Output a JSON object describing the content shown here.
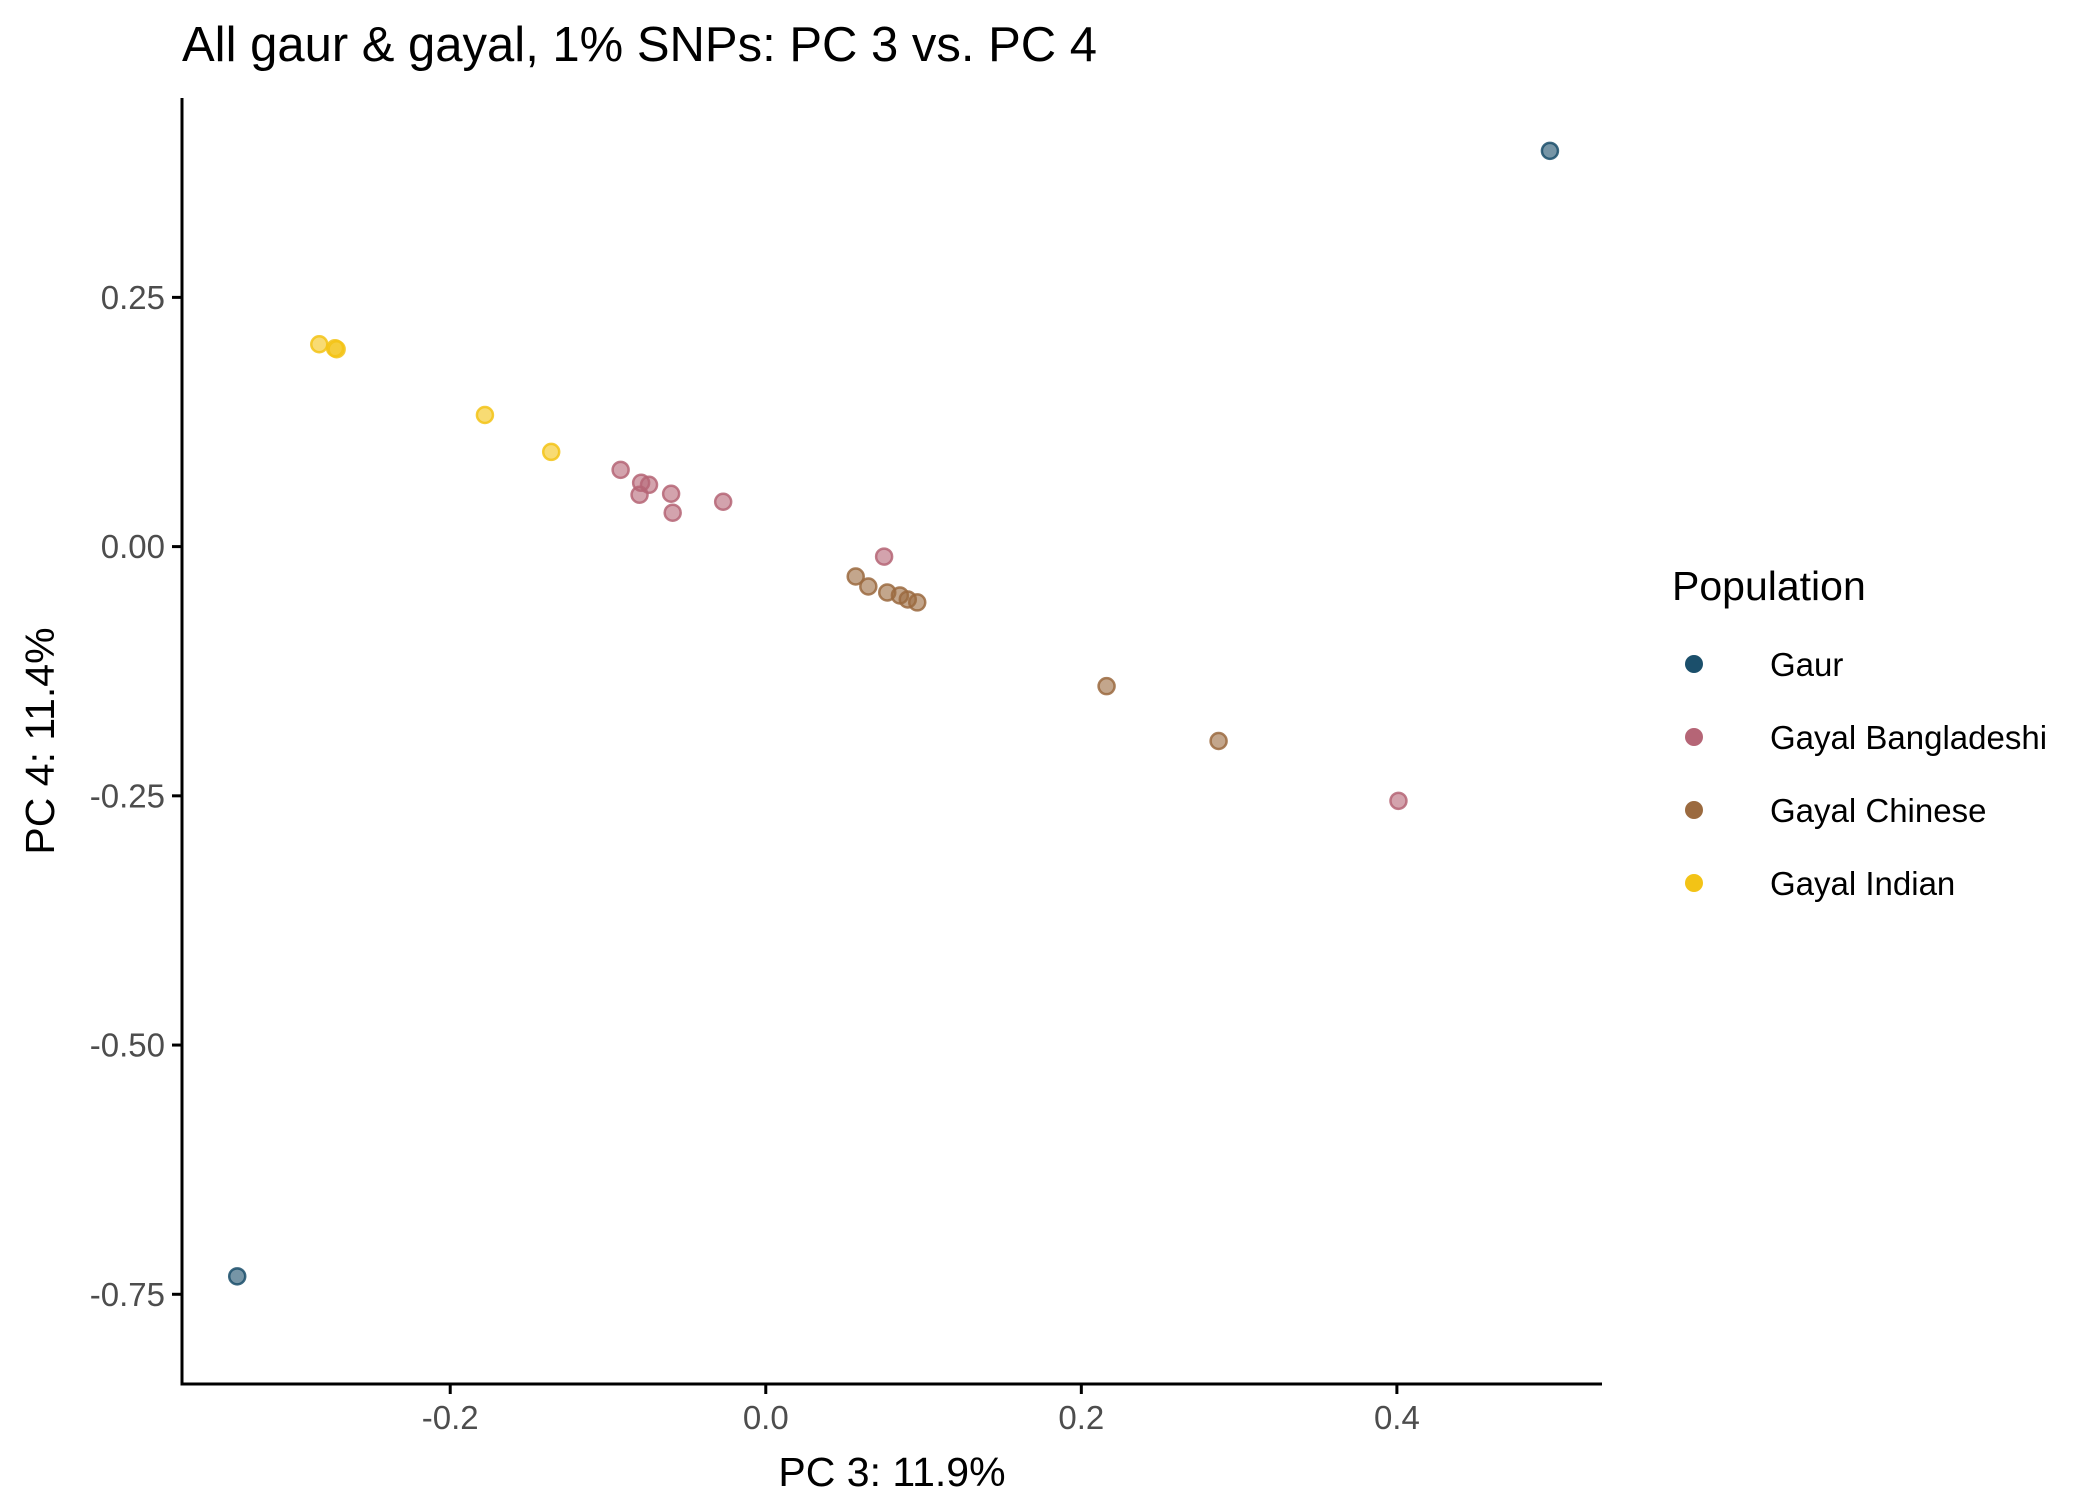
{
  "chart_data": {
    "type": "scatter",
    "title": "All gaur & gayal, 1% SNPs: PC 3 vs. PC 4",
    "xlabel": "PC 3: 11.9%",
    "ylabel": "PC 4: 11.4%",
    "xlim": [
      -0.37,
      0.53
    ],
    "ylim": [
      -0.84,
      0.45
    ],
    "xticks": [
      {
        "value": -0.2,
        "label": "-0.2"
      },
      {
        "value": 0.0,
        "label": "0.0"
      },
      {
        "value": 0.2,
        "label": "0.2"
      },
      {
        "value": 0.4,
        "label": "0.4"
      }
    ],
    "yticks": [
      {
        "value": 0.25,
        "label": "0.25"
      },
      {
        "value": 0.0,
        "label": "0.00"
      },
      {
        "value": -0.25,
        "label": "-0.25"
      },
      {
        "value": -0.5,
        "label": "-0.50"
      },
      {
        "value": -0.75,
        "label": "-0.75"
      }
    ],
    "grid": false,
    "legend": {
      "title": "Population",
      "position": "right"
    },
    "series": [
      {
        "name": "Gaur",
        "color": "#1b4f6b",
        "points": [
          [
            0.497,
            0.397
          ],
          [
            -0.335,
            -0.732
          ]
        ]
      },
      {
        "name": "Gayal Bangladeshi",
        "color": "#b56576",
        "points": [
          [
            -0.092,
            0.077
          ],
          [
            -0.079,
            0.064
          ],
          [
            -0.074,
            0.062
          ],
          [
            -0.08,
            0.052
          ],
          [
            -0.06,
            0.053
          ],
          [
            -0.059,
            0.034
          ],
          [
            -0.027,
            0.045
          ],
          [
            0.075,
            -0.01
          ],
          [
            0.401,
            -0.255
          ]
        ]
      },
      {
        "name": "Gayal Chinese",
        "color": "#9b6a3f",
        "points": [
          [
            0.057,
            -0.03
          ],
          [
            0.065,
            -0.04
          ],
          [
            0.077,
            -0.046
          ],
          [
            0.085,
            -0.049
          ],
          [
            0.09,
            -0.053
          ],
          [
            0.096,
            -0.056
          ],
          [
            0.216,
            -0.14
          ],
          [
            0.287,
            -0.195
          ]
        ]
      },
      {
        "name": "Gayal Indian",
        "color": "#f3c316",
        "points": [
          [
            -0.283,
            0.203
          ],
          [
            -0.273,
            0.199
          ],
          [
            -0.272,
            0.198
          ],
          [
            -0.178,
            0.132
          ],
          [
            -0.136,
            0.095
          ]
        ]
      }
    ]
  }
}
